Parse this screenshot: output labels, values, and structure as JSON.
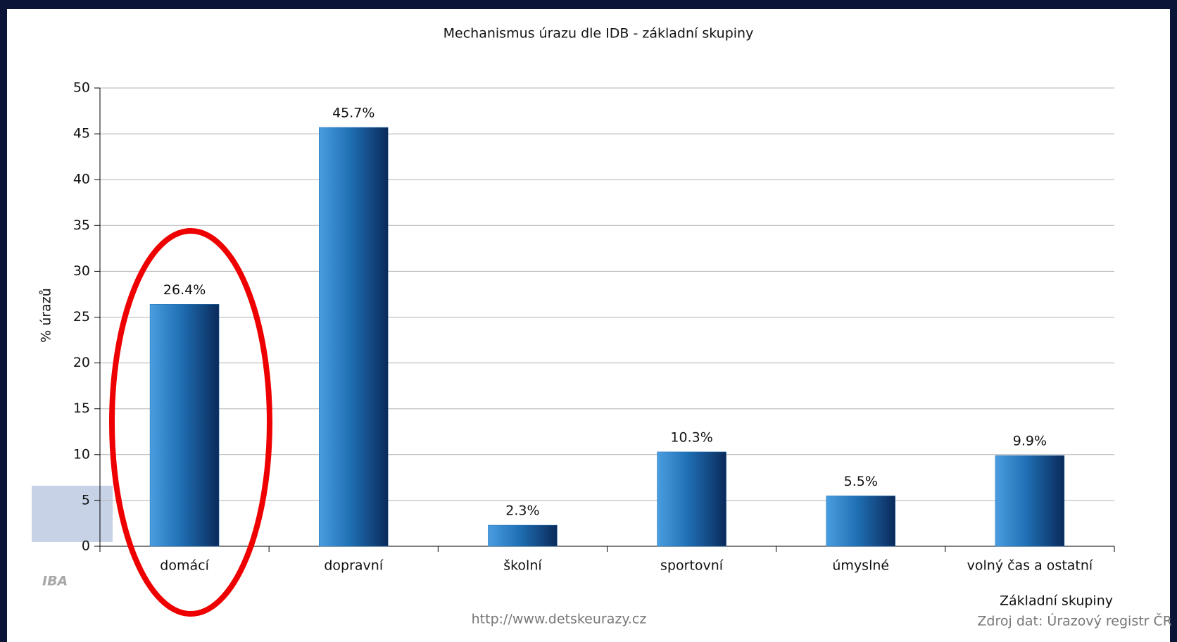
{
  "chart_data": {
    "type": "bar",
    "title": "Mechanismus úrazu dle IDB - základní skupiny",
    "y_label": "% úrazů",
    "x_label": "Základní skupiny",
    "url": "http://www.detskeurazy.cz",
    "source": "Zdroj dat: Úrazový registr ČR",
    "watermark": "IBA",
    "categories": [
      "domácí",
      "dopravní",
      "školní",
      "sportovní",
      "úmyslné",
      "volný čas a ostatní"
    ],
    "values": [
      26.4,
      45.7,
      2.3,
      10.3,
      5.5,
      9.9
    ],
    "value_labels": [
      "26.4%",
      "45.7%",
      "2.3%",
      "10.3%",
      "5.5%",
      "9.9%"
    ],
    "color": "#1f6fb4",
    "ylim": [
      0,
      50
    ],
    "yticks": [
      0,
      5,
      10,
      15,
      20,
      25,
      30,
      35,
      40,
      45,
      50
    ],
    "grid": true
  }
}
